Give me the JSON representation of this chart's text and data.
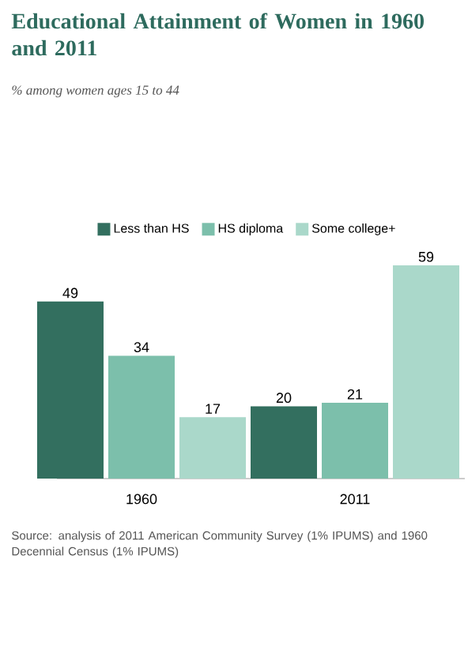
{
  "chart_data": {
    "type": "bar",
    "title": "Educational Attainment of Women in 1960 and 2011",
    "subtitle": "% among women ages 15 to 44",
    "categories": [
      "1960",
      "2011"
    ],
    "series": [
      {
        "name": "Less than HS",
        "color": "#336f5f",
        "values": [
          49,
          20
        ]
      },
      {
        "name": "HS diploma",
        "color": "#7cbfab",
        "values": [
          34,
          21
        ]
      },
      {
        "name": "Some college+",
        "color": "#aad8ca",
        "values": [
          17,
          59
        ]
      }
    ],
    "data_labels": true,
    "legend": "top",
    "annotations": [
      "Source: analysis of 2011 American Community Survey (1% IPUMS) and 1960 Decennial Census (1% IPUMS)"
    ]
  }
}
